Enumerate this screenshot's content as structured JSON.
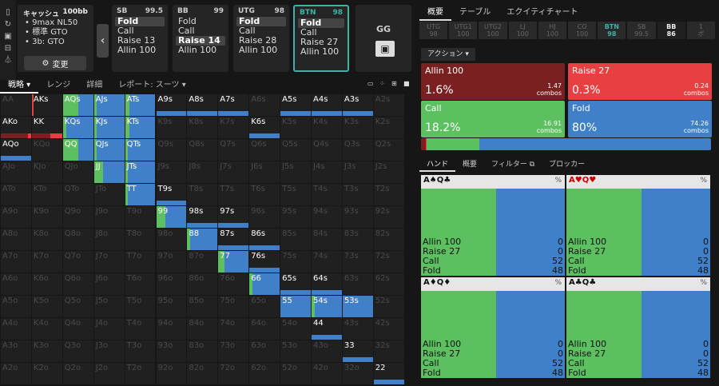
{
  "rail": [
    "▯",
    "↻",
    "▣",
    "⊟",
    "⏃"
  ],
  "cash": {
    "title": "キャッシュ",
    "stack": "100bb",
    "lines": [
      "9max NL50",
      "標準 GTO",
      "3b: GTO"
    ],
    "change": "変更"
  },
  "positions": [
    {
      "name": "SB",
      "stack": "99.5",
      "options": [
        "Fold",
        "Call",
        "Raise 13",
        "Allin 100"
      ],
      "sel": 0
    },
    {
      "name": "BB",
      "stack": "99",
      "options": [
        "Fold",
        "Call",
        "Raise 14",
        "Allin 100"
      ],
      "sel": 2
    },
    {
      "name": "UTG",
      "stack": "98",
      "options": [
        "Fold",
        "Call",
        "Raise 28",
        "Allin 100"
      ],
      "sel": 0
    },
    {
      "name": "BTN",
      "stack": "98",
      "options": [
        "Fold",
        "Call",
        "Raise 27",
        "Allin 100"
      ],
      "sel": 0
    }
  ],
  "gg": "GG",
  "tabs": [
    "戦略",
    "レンジ",
    "詳細",
    "レポート: スーツ"
  ],
  "rtabs": [
    "概要",
    "テーブル",
    "エクイティチャート"
  ],
  "posstrip": [
    [
      "UTG",
      "98"
    ],
    [
      "UTG1",
      "100"
    ],
    [
      "UTG2",
      "100"
    ],
    [
      "LJ",
      "100"
    ],
    [
      "HJ",
      "100"
    ],
    [
      "CO",
      "100"
    ],
    [
      "BTN",
      "98"
    ],
    [
      "SB",
      "99.5"
    ],
    [
      "BB",
      "86"
    ],
    [
      "1",
      "ポ"
    ]
  ],
  "action_label": "アクション",
  "actions": [
    {
      "name": "Allin 100",
      "pct": "1.6%",
      "combos": "1.47",
      "color": "#7a2020"
    },
    {
      "name": "Raise 27",
      "pct": "0.3%",
      "combos": "0.24",
      "color": "#e84040"
    },
    {
      "name": "Call",
      "pct": "18.2%",
      "combos": "16.91",
      "color": "#5cc060"
    },
    {
      "name": "Fold",
      "pct": "80%",
      "combos": "74.26",
      "color": "#3f80c8"
    }
  ],
  "combos_word": "combos",
  "htabs": [
    "ハンド",
    "概要",
    "フィルター",
    "ブロッカー"
  ],
  "hands": [
    {
      "cards": [
        "A♠",
        "Q♣"
      ],
      "red": [
        false,
        false
      ],
      "rows": [
        [
          "Allin 100",
          "0"
        ],
        [
          "Raise 27",
          "0"
        ],
        [
          "Call",
          "52"
        ],
        [
          "Fold",
          "48"
        ]
      ],
      "call": 0.52
    },
    {
      "cards": [
        "A♥",
        "Q♥"
      ],
      "red": [
        true,
        true
      ],
      "rows": [
        [
          "Allin 100",
          "0"
        ],
        [
          "Raise 27",
          "0"
        ],
        [
          "Call",
          "52"
        ],
        [
          "Fold",
          "48"
        ]
      ],
      "call": 0.52
    },
    {
      "cards": [
        "A♦",
        "Q♦"
      ],
      "red": [
        false,
        false
      ],
      "rows": [
        [
          "Allin 100",
          "0"
        ],
        [
          "Raise 27",
          "0"
        ],
        [
          "Call",
          "52"
        ],
        [
          "Fold",
          "48"
        ]
      ],
      "call": 0.52
    },
    {
      "cards": [
        "A♣",
        "Q♣"
      ],
      "red": [
        false,
        false
      ],
      "rows": [
        [
          "Allin 100",
          "0"
        ],
        [
          "Raise 27",
          "0"
        ],
        [
          "Call",
          "52"
        ],
        [
          "Fold",
          "48"
        ]
      ],
      "call": 0.52
    }
  ],
  "grid_labels": [
    [
      "AA",
      "AKs",
      "AQs",
      "AJs",
      "ATs",
      "A9s",
      "A8s",
      "A7s",
      "A6s",
      "A5s",
      "A4s",
      "A3s",
      "A2s"
    ],
    [
      "AKo",
      "KK",
      "KQs",
      "KJs",
      "KTs",
      "K9s",
      "K8s",
      "K7s",
      "K6s",
      "K5s",
      "K4s",
      "K3s",
      "K2s"
    ],
    [
      "AQo",
      "KQo",
      "QQ",
      "QJs",
      "QTs",
      "Q9s",
      "Q8s",
      "Q7s",
      "Q6s",
      "Q5s",
      "Q4s",
      "Q3s",
      "Q2s"
    ],
    [
      "AJo",
      "KJo",
      "QJo",
      "JJ",
      "JTs",
      "J9s",
      "J8s",
      "J7s",
      "J6s",
      "J5s",
      "J4s",
      "J3s",
      "J2s"
    ],
    [
      "ATo",
      "KTo",
      "QTo",
      "JTo",
      "TT",
      "T9s",
      "T8s",
      "T7s",
      "T6s",
      "T5s",
      "T4s",
      "T3s",
      "T2s"
    ],
    [
      "A9o",
      "K9o",
      "Q9o",
      "J9o",
      "T9o",
      "99",
      "98s",
      "97s",
      "96s",
      "95s",
      "94s",
      "93s",
      "92s"
    ],
    [
      "A8o",
      "K8o",
      "Q8o",
      "J8o",
      "T8o",
      "98o",
      "88",
      "87s",
      "86s",
      "85s",
      "84s",
      "83s",
      "82s"
    ],
    [
      "A7o",
      "K7o",
      "Q7o",
      "J7o",
      "T7o",
      "97o",
      "87o",
      "77",
      "76s",
      "75s",
      "74s",
      "73s",
      "72s"
    ],
    [
      "A6o",
      "K6o",
      "Q6o",
      "J6o",
      "T6o",
      "96o",
      "86o",
      "76o",
      "66",
      "65s",
      "64s",
      "63s",
      "62s"
    ],
    [
      "A5o",
      "K5o",
      "Q5o",
      "J5o",
      "T5o",
      "95o",
      "85o",
      "75o",
      "65o",
      "55",
      "54s",
      "53s",
      "52s"
    ],
    [
      "A4o",
      "K4o",
      "Q4o",
      "J4o",
      "T4o",
      "94o",
      "84o",
      "74o",
      "64o",
      "54o",
      "44",
      "43s",
      "42s"
    ],
    [
      "A3o",
      "K3o",
      "Q3o",
      "J3o",
      "T3o",
      "93o",
      "83o",
      "73o",
      "63o",
      "53o",
      "43o",
      "33",
      "32s"
    ],
    [
      "A2o",
      "K2o",
      "Q2o",
      "J2o",
      "T2o",
      "92o",
      "82o",
      "72o",
      "62o",
      "52o",
      "42o",
      "32o",
      "22"
    ]
  ],
  "grid_strats": {
    "AKs": [
      0,
      0.05,
      0,
      0,
      "t"
    ],
    "AQs": [
      0,
      0,
      0.5,
      0.5,
      "t"
    ],
    "AJs": [
      0,
      0,
      0.1,
      0.9,
      "t"
    ],
    "ATs": [
      0,
      0,
      0.15,
      0.85,
      "t"
    ],
    "A9s": [
      0,
      0,
      0,
      1
    ],
    "A8s": [
      0,
      0,
      0,
      1
    ],
    "A7s": [
      0,
      0,
      0,
      1
    ],
    "A5s": [
      0,
      0,
      0,
      1
    ],
    "A4s": [
      0,
      0,
      0,
      1
    ],
    "A3s": [
      0,
      0,
      0,
      1
    ],
    "AKo": [
      0.9,
      0.1,
      0,
      0
    ],
    "KK": [
      0.6,
      0.4,
      0,
      0
    ],
    "KQs": [
      0,
      0,
      0.1,
      0.9,
      "t"
    ],
    "KJs": [
      0,
      0,
      0.1,
      0.9,
      "t"
    ],
    "KTs": [
      0,
      0,
      0.15,
      0.85,
      "t"
    ],
    "K6s": [
      0,
      0,
      0,
      1
    ],
    "AQo": [
      0,
      0,
      0,
      1
    ],
    "QQ": [
      0,
      0,
      0.5,
      0.5,
      "t"
    ],
    "QJs": [
      0,
      0,
      0.1,
      0.9,
      "t"
    ],
    "QTs": [
      0,
      0,
      0.1,
      0.9,
      "t"
    ],
    "JJ": [
      0,
      0,
      0.3,
      0.7,
      "t"
    ],
    "JTs": [
      0,
      0,
      0.1,
      0.9,
      "t"
    ],
    "TT": [
      0,
      0,
      0.1,
      0.9,
      "t"
    ],
    "T9s": [
      0,
      0,
      0,
      1
    ],
    "99": [
      0,
      0,
      0.3,
      0.7,
      "t"
    ],
    "98s": [
      0,
      0,
      0,
      1
    ],
    "97s": [
      0,
      0,
      0,
      1
    ],
    "88": [
      0,
      0,
      0.1,
      0.9,
      "t"
    ],
    "87s": [
      0,
      0,
      0,
      1
    ],
    "86s": [
      0,
      0,
      0,
      1
    ],
    "77": [
      0,
      0,
      0.2,
      0.8,
      "t"
    ],
    "76s": [
      0,
      0,
      0,
      1
    ],
    "66": [
      0,
      0,
      0.1,
      0.9,
      "t"
    ],
    "65s": [
      0,
      0,
      0,
      1
    ],
    "64s": [
      0,
      0,
      0,
      1
    ],
    "55": [
      0,
      0,
      0,
      1,
      "t"
    ],
    "54s": [
      0,
      0,
      0.1,
      0.9,
      "t"
    ],
    "53s": [
      0,
      0,
      0,
      1,
      "t"
    ],
    "44": [
      0,
      0,
      0,
      1
    ],
    "33": [
      0,
      0,
      0,
      1
    ],
    "22": [
      0,
      0,
      0,
      1
    ]
  }
}
